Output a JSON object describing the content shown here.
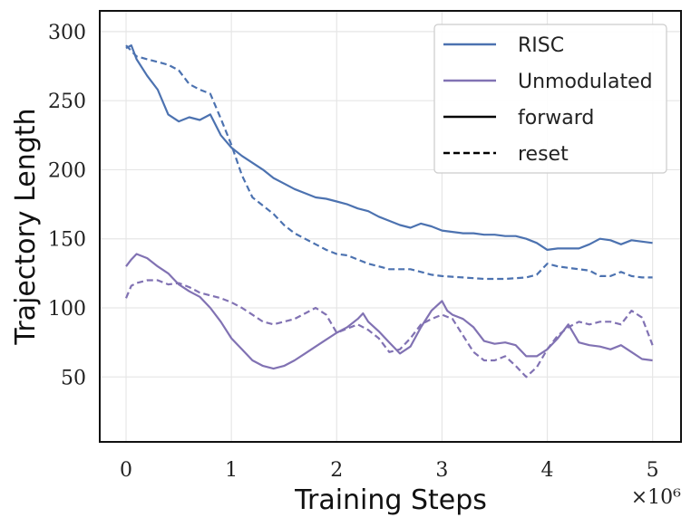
{
  "chart_data": {
    "type": "line",
    "title": "",
    "xlabel": "Training Steps",
    "ylabel": "Trajectory Length",
    "x_multiplier_label": "×10⁶",
    "xlim": [
      -0.25,
      5.27
    ],
    "ylim": [
      3,
      315
    ],
    "xticks": [
      0,
      1,
      2,
      3,
      4,
      5
    ],
    "yticks": [
      50,
      100,
      150,
      200,
      250,
      300
    ],
    "grid": true,
    "legend_position": "top-right",
    "legend": [
      {
        "label": "RISC",
        "color": "#4c72b0",
        "style": "solid"
      },
      {
        "label": "Unmodulated",
        "color": "#8172b3",
        "style": "solid"
      },
      {
        "label": "forward",
        "color": "#000000",
        "style": "solid"
      },
      {
        "label": "reset",
        "color": "#000000",
        "style": "dashed"
      }
    ],
    "series": [
      {
        "name": "RISC forward",
        "color": "#4c72b0",
        "style": "solid",
        "x": [
          0,
          0.05,
          0.1,
          0.2,
          0.3,
          0.4,
          0.5,
          0.6,
          0.7,
          0.8,
          0.9,
          1.0,
          1.1,
          1.2,
          1.3,
          1.4,
          1.5,
          1.6,
          1.7,
          1.8,
          1.9,
          2.0,
          2.1,
          2.2,
          2.3,
          2.4,
          2.5,
          2.6,
          2.7,
          2.8,
          2.9,
          3.0,
          3.1,
          3.2,
          3.3,
          3.4,
          3.5,
          3.6,
          3.7,
          3.8,
          3.9,
          4.0,
          4.1,
          4.2,
          4.3,
          4.4,
          4.5,
          4.6,
          4.7,
          4.8,
          4.9,
          5.0
        ],
        "y": [
          288,
          290,
          280,
          268,
          258,
          240,
          235,
          238,
          236,
          240,
          225,
          216,
          210,
          205,
          200,
          194,
          190,
          186,
          183,
          180,
          179,
          177,
          175,
          172,
          170,
          166,
          163,
          160,
          158,
          161,
          159,
          156,
          155,
          154,
          154,
          153,
          153,
          152,
          152,
          150,
          147,
          142,
          143,
          143,
          143,
          146,
          150,
          149,
          146,
          149,
          148,
          147
        ]
      },
      {
        "name": "RISC reset",
        "color": "#4c72b0",
        "style": "dashed",
        "x": [
          0,
          0.1,
          0.2,
          0.3,
          0.4,
          0.5,
          0.6,
          0.7,
          0.8,
          0.9,
          1.0,
          1.1,
          1.2,
          1.3,
          1.4,
          1.5,
          1.6,
          1.7,
          1.8,
          1.9,
          2.0,
          2.1,
          2.2,
          2.3,
          2.4,
          2.5,
          2.6,
          2.7,
          2.8,
          2.9,
          3.0,
          3.2,
          3.4,
          3.6,
          3.8,
          3.9,
          4.0,
          4.1,
          4.2,
          4.3,
          4.4,
          4.5,
          4.6,
          4.7,
          4.8,
          4.9,
          5.0
        ],
        "y": [
          290,
          282,
          280,
          278,
          276,
          272,
          262,
          258,
          255,
          237,
          218,
          196,
          180,
          174,
          168,
          160,
          154,
          150,
          146,
          142,
          139,
          138,
          135,
          132,
          130,
          128,
          128,
          128,
          126,
          124,
          123,
          122,
          121,
          121,
          122,
          124,
          132,
          130,
          129,
          128,
          127,
          123,
          123,
          126,
          123,
          122,
          122
        ]
      },
      {
        "name": "Unmodulated forward",
        "color": "#8172b3",
        "style": "solid",
        "x": [
          0,
          0.05,
          0.1,
          0.2,
          0.3,
          0.4,
          0.5,
          0.6,
          0.7,
          0.8,
          0.9,
          1.0,
          1.1,
          1.2,
          1.3,
          1.4,
          1.5,
          1.6,
          1.7,
          1.8,
          1.9,
          2.0,
          2.1,
          2.2,
          2.25,
          2.3,
          2.4,
          2.5,
          2.6,
          2.7,
          2.8,
          2.9,
          3.0,
          3.05,
          3.1,
          3.2,
          3.3,
          3.4,
          3.5,
          3.6,
          3.7,
          3.8,
          3.9,
          4.0,
          4.1,
          4.2,
          4.3,
          4.4,
          4.5,
          4.6,
          4.7,
          4.8,
          4.9,
          5.0
        ],
        "y": [
          130,
          135,
          139,
          136,
          130,
          125,
          117,
          112,
          108,
          100,
          90,
          78,
          70,
          62,
          58,
          56,
          58,
          62,
          67,
          72,
          77,
          82,
          86,
          92,
          96,
          90,
          83,
          75,
          67,
          72,
          86,
          98,
          105,
          98,
          95,
          92,
          86,
          76,
          74,
          75,
          73,
          65,
          65,
          70,
          78,
          88,
          75,
          73,
          72,
          70,
          73,
          68,
          63,
          62
        ]
      },
      {
        "name": "Unmodulated reset",
        "color": "#8172b3",
        "style": "dashed",
        "x": [
          0,
          0.05,
          0.1,
          0.2,
          0.3,
          0.4,
          0.5,
          0.6,
          0.7,
          0.8,
          0.9,
          1.0,
          1.1,
          1.2,
          1.3,
          1.4,
          1.5,
          1.6,
          1.7,
          1.8,
          1.9,
          2.0,
          2.1,
          2.2,
          2.3,
          2.4,
          2.5,
          2.6,
          2.7,
          2.8,
          2.9,
          3.0,
          3.1,
          3.2,
          3.3,
          3.4,
          3.5,
          3.6,
          3.7,
          3.8,
          3.9,
          4.0,
          4.1,
          4.2,
          4.3,
          4.4,
          4.5,
          4.6,
          4.7,
          4.8,
          4.9,
          5.0
        ],
        "y": [
          107,
          116,
          118,
          120,
          120,
          117,
          118,
          115,
          111,
          109,
          107,
          104,
          100,
          95,
          90,
          88,
          90,
          92,
          96,
          100,
          95,
          82,
          85,
          88,
          84,
          78,
          68,
          70,
          78,
          88,
          92,
          95,
          92,
          80,
          68,
          62,
          62,
          65,
          58,
          50,
          57,
          70,
          80,
          86,
          90,
          88,
          90,
          90,
          88,
          98,
          93,
          73
        ]
      }
    ]
  }
}
